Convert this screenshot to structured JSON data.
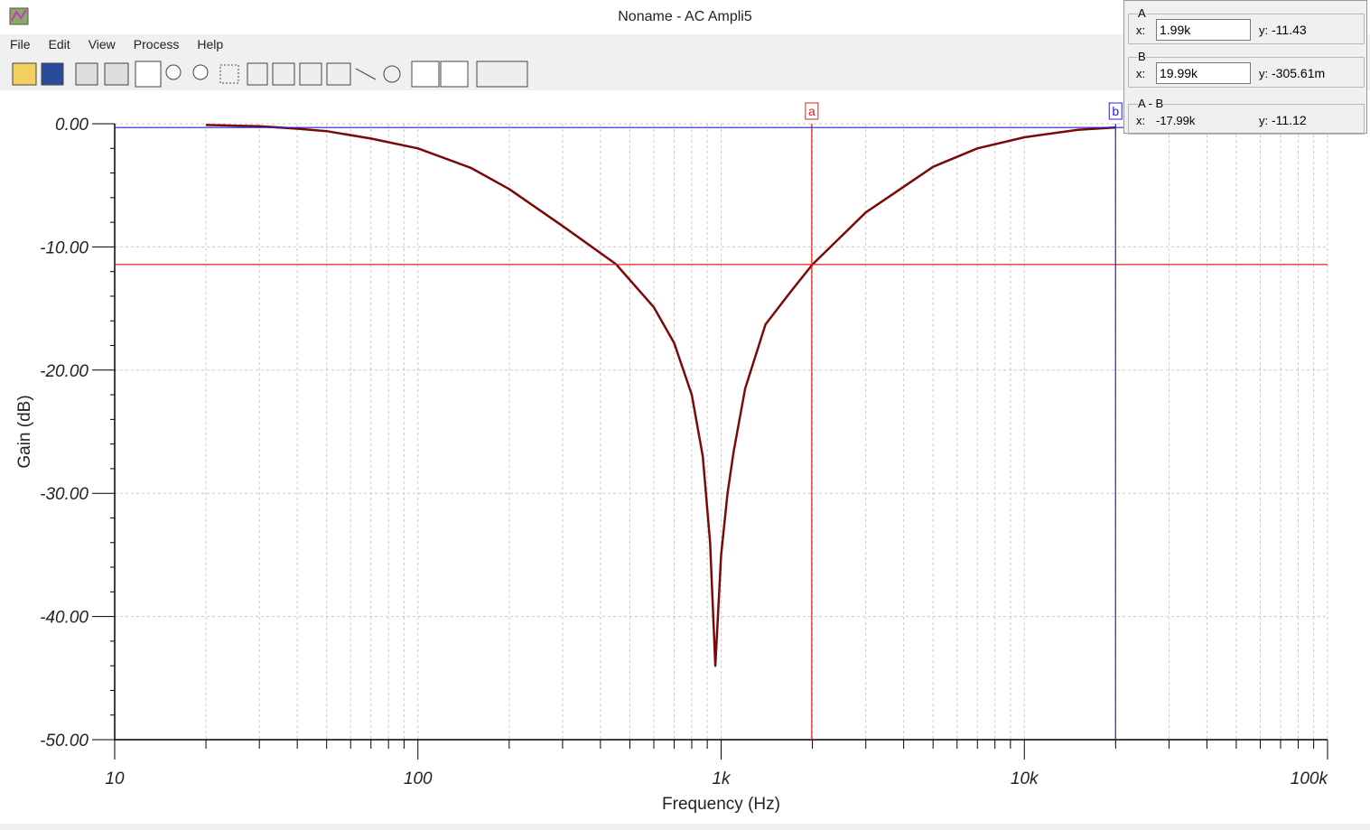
{
  "window": {
    "title": "Noname - AC Ampli5",
    "menu": [
      "File",
      "Edit",
      "View",
      "Process",
      "Help"
    ]
  },
  "cursor_panel": {
    "x_label": "x:",
    "y_label": "y:",
    "rows": [
      {
        "label": "A",
        "x": "1.99k",
        "y": "-11.43"
      },
      {
        "label": "B",
        "x": "19.99k",
        "y": "-305.61m"
      },
      {
        "label": "A - B",
        "x": "-17.99k",
        "y": "-11.12"
      }
    ]
  },
  "chart_data": {
    "type": "line",
    "x_label": "Frequency (Hz)",
    "y_label": "Gain (dB)",
    "log_x": true,
    "grid": true,
    "xlim": [
      10,
      100000
    ],
    "xticks": [
      10,
      100,
      {
        "value": 1000,
        "label": "1k"
      },
      {
        "value": 10000,
        "label": "10k"
      },
      {
        "value": 100000,
        "label": "100k"
      }
    ],
    "ylim": [
      -50,
      0
    ],
    "yticks": [
      {
        "value": 0,
        "label": "0.00"
      },
      {
        "value": -10,
        "label": "-10.00"
      },
      {
        "value": -20,
        "label": "-20.00"
      },
      {
        "value": -30,
        "label": "-30.00"
      },
      {
        "value": -40,
        "label": "-40.00"
      },
      {
        "value": -50,
        "label": "-50.00"
      }
    ],
    "x": [
      20,
      30,
      40,
      50,
      70,
      100,
      150,
      200,
      300,
      450,
      600,
      700,
      800,
      870,
      920,
      957,
      1000,
      1050,
      1100,
      1200,
      1400,
      1700,
      2000,
      3000,
      5000,
      7000,
      10000,
      15000,
      20000
    ],
    "series": [
      {
        "color": "#7a0a0a",
        "values": [
          -0.1,
          -0.2,
          -0.4,
          -0.6,
          -1.2,
          -2.0,
          -3.6,
          -5.3,
          -8.3,
          -11.4,
          -14.9,
          -17.8,
          -22,
          -27,
          -34,
          -44,
          -35,
          -30,
          -26.6,
          -21.5,
          -16.3,
          -13.6,
          -11.43,
          -7.2,
          -3.5,
          -2.0,
          -1.1,
          -0.5,
          -0.3
        ]
      }
    ],
    "cursors": [
      {
        "name": "a",
        "x": 1990,
        "y": -11.43,
        "color": "#e02020"
      },
      {
        "name": "b",
        "x": 19990,
        "y": -0.30561,
        "color": "#2020e0"
      }
    ]
  }
}
